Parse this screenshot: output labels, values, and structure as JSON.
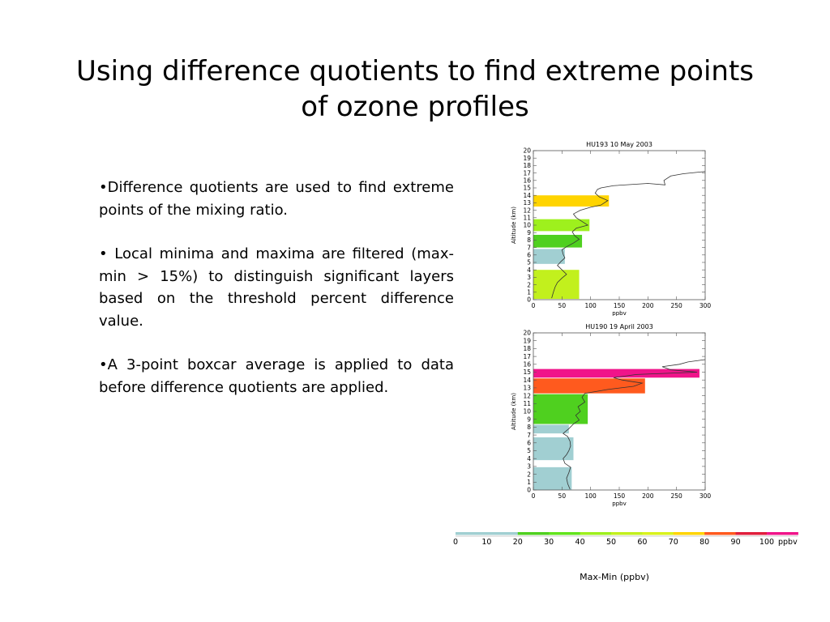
{
  "slide": {
    "title_line1": "Using difference quotients to find extreme points",
    "title_line2": "of ozone profiles"
  },
  "bullets": [
    {
      "marker": "•",
      "text": "Difference quotients are used to find extreme points of the mixing ratio."
    },
    {
      "marker": "• ",
      "text": "Local minima and maxima are filtered (max-min > 15%) to distinguish significant layers based on the threshold percent difference value."
    },
    {
      "marker": "•",
      "text": "A 3-point boxcar average is applied to data before difference quotients are applied."
    }
  ],
  "colors": {
    "c0": "#a1cfd2",
    "c20": "#4fd01f",
    "c30": "#62e41c",
    "c40": "#9ef01d",
    "c50": "#c2f01d",
    "c80": "#ffd400",
    "c90": "#ff5a1e",
    "c100": "#f0148a"
  },
  "chart_data": [
    {
      "type": "bar",
      "title": "HU193  10 May 2003",
      "xlabel": "ppbv",
      "ylabel": "Altitude (km)",
      "xlim": [
        0,
        300
      ],
      "ylim": [
        0,
        20
      ],
      "xticks": [
        "0",
        "50",
        "100",
        "150",
        "200",
        "250",
        "300"
      ],
      "yticks": [
        "0",
        "1",
        "2",
        "3",
        "4",
        "5",
        "6",
        "7",
        "8",
        "9",
        "10",
        "11",
        "12",
        "13",
        "14",
        "15",
        "16",
        "17",
        "18",
        "19",
        "20"
      ],
      "layers": [
        {
          "bottom": 0.1,
          "top": 4.0,
          "width": 80,
          "color": "#c2f01d"
        },
        {
          "bottom": 4.8,
          "top": 6.8,
          "width": 55,
          "color": "#a1cfd2"
        },
        {
          "bottom": 7.0,
          "top": 8.7,
          "width": 85,
          "color": "#4fd01f"
        },
        {
          "bottom": 9.2,
          "top": 10.8,
          "width": 98,
          "color": "#9ef01d"
        },
        {
          "bottom": 12.5,
          "top": 14.0,
          "width": 132,
          "color": "#ffd400"
        }
      ],
      "profile": [
        [
          32,
          0.2
        ],
        [
          35,
          1.0
        ],
        [
          38,
          1.7
        ],
        [
          42,
          2.3
        ],
        [
          50,
          2.9
        ],
        [
          58,
          3.4
        ],
        [
          50,
          4.0
        ],
        [
          42,
          4.6
        ],
        [
          48,
          5.1
        ],
        [
          55,
          5.6
        ],
        [
          52,
          6.1
        ],
        [
          50,
          6.7
        ],
        [
          58,
          7.1
        ],
        [
          70,
          7.6
        ],
        [
          80,
          8.1
        ],
        [
          72,
          8.6
        ],
        [
          68,
          9.1
        ],
        [
          75,
          9.6
        ],
        [
          95,
          10.0
        ],
        [
          85,
          10.5
        ],
        [
          75,
          11.0
        ],
        [
          70,
          11.5
        ],
        [
          82,
          12.0
        ],
        [
          100,
          12.4
        ],
        [
          118,
          12.7
        ],
        [
          130,
          13.3
        ],
        [
          115,
          13.8
        ],
        [
          108,
          14.3
        ],
        [
          112,
          14.8
        ],
        [
          118,
          15.0
        ],
        [
          140,
          15.3
        ],
        [
          200,
          15.6
        ],
        [
          230,
          15.4
        ],
        [
          228,
          16.0
        ],
        [
          240,
          16.6
        ],
        [
          262,
          16.9
        ],
        [
          300,
          17.2
        ]
      ]
    },
    {
      "type": "bar",
      "title": "HU190  19 April 2003",
      "xlabel": "ppbv",
      "ylabel": "Altitude (km)",
      "xlim": [
        0,
        300
      ],
      "ylim": [
        0,
        20
      ],
      "xticks": [
        "0",
        "50",
        "100",
        "150",
        "200",
        "250",
        "300"
      ],
      "yticks": [
        "0",
        "1",
        "2",
        "3",
        "4",
        "5",
        "6",
        "7",
        "8",
        "9",
        "10",
        "11",
        "12",
        "13",
        "14",
        "15",
        "16",
        "17",
        "18",
        "19",
        "20"
      ],
      "layers": [
        {
          "bottom": 0.0,
          "top": 2.9,
          "width": 67,
          "color": "#a1cfd2"
        },
        {
          "bottom": 3.8,
          "top": 6.7,
          "width": 70,
          "color": "#a1cfd2"
        },
        {
          "bottom": 7.2,
          "top": 8.3,
          "width": 62,
          "color": "#a1cfd2"
        },
        {
          "bottom": 8.4,
          "top": 12.2,
          "width": 95,
          "color": "#4fd01f"
        },
        {
          "bottom": 12.3,
          "top": 14.2,
          "width": 195,
          "color": "#ff5a1e"
        },
        {
          "bottom": 14.3,
          "top": 15.4,
          "width": 290,
          "color": "#f0148a"
        }
      ],
      "profile": [
        [
          64,
          0.1
        ],
        [
          60,
          0.8
        ],
        [
          58,
          1.5
        ],
        [
          62,
          2.2
        ],
        [
          65,
          2.9
        ],
        [
          55,
          3.4
        ],
        [
          52,
          4.0
        ],
        [
          58,
          4.5
        ],
        [
          62,
          5.0
        ],
        [
          65,
          5.6
        ],
        [
          64,
          6.2
        ],
        [
          60,
          6.8
        ],
        [
          52,
          7.2
        ],
        [
          62,
          7.8
        ],
        [
          70,
          8.4
        ],
        [
          80,
          8.9
        ],
        [
          74,
          9.5
        ],
        [
          82,
          10.0
        ],
        [
          78,
          10.6
        ],
        [
          90,
          11.2
        ],
        [
          85,
          11.8
        ],
        [
          90,
          12.3
        ],
        [
          130,
          12.8
        ],
        [
          175,
          13.2
        ],
        [
          190,
          13.6
        ],
        [
          155,
          14.0
        ],
        [
          140,
          14.3
        ],
        [
          180,
          14.7
        ],
        [
          286,
          15.0
        ],
        [
          240,
          15.3
        ],
        [
          225,
          15.7
        ],
        [
          255,
          16.0
        ],
        [
          270,
          16.3
        ],
        [
          300,
          16.6
        ]
      ]
    }
  ],
  "scale": {
    "labels": [
      "0",
      "10",
      "20",
      "30",
      "40",
      "50",
      "60",
      "70",
      "80",
      "90",
      "100"
    ],
    "unit": "ppbv",
    "caption": "Max-Min (ppbv)",
    "bands": [
      {
        "from": 0,
        "to": 10,
        "color": "#a1cfd2"
      },
      {
        "from": 10,
        "to": 20,
        "color": "#a1cfd2"
      },
      {
        "from": 20,
        "to": 30,
        "color": "#4fd01f"
      },
      {
        "from": 30,
        "to": 40,
        "color": "#62e41c"
      },
      {
        "from": 40,
        "to": 50,
        "color": "#9ef01d"
      },
      {
        "from": 50,
        "to": 60,
        "color": "#c2f01d"
      },
      {
        "from": 60,
        "to": 70,
        "color": "#d9f21c"
      },
      {
        "from": 70,
        "to": 80,
        "color": "#ffd400"
      },
      {
        "from": 80,
        "to": 90,
        "color": "#ff5a1e"
      },
      {
        "from": 90,
        "to": 100,
        "color": "#e01e3c"
      },
      {
        "from": 100,
        "to": 110,
        "color": "#f0148a"
      }
    ]
  }
}
